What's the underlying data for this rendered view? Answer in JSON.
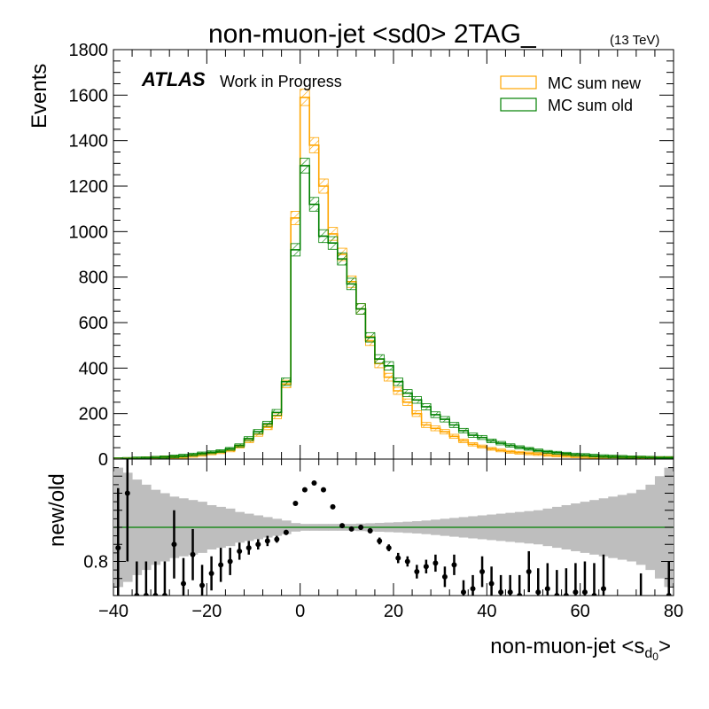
{
  "chart_data": [
    {
      "panel": "main",
      "type": "step-histogram",
      "title": "non-muon-jet <sd0> 2TAG_",
      "energy_label": "(13 TeV)",
      "atlas_label": "ATLAS",
      "atlas_sublabel": "Work in Progress",
      "ylabel": "Events",
      "ylim": [
        0,
        1800
      ],
      "xlim": [
        -40,
        80
      ],
      "y_ticks": [
        0,
        200,
        400,
        600,
        800,
        1000,
        1200,
        1400,
        1600,
        1800
      ],
      "y_tick_labels": [
        "0",
        "200",
        "400",
        "600",
        "800",
        "1000",
        "1200",
        "1400",
        "1600",
        "1800"
      ],
      "legend_position": "top-right",
      "bin_edges": [
        -40,
        -38,
        -36,
        -34,
        -32,
        -30,
        -28,
        -26,
        -24,
        -22,
        -20,
        -18,
        -16,
        -14,
        -12,
        -10,
        -8,
        -6,
        -4,
        -2,
        0,
        2,
        4,
        6,
        8,
        10,
        12,
        14,
        16,
        18,
        20,
        22,
        24,
        26,
        28,
        30,
        32,
        34,
        36,
        38,
        40,
        42,
        44,
        46,
        48,
        50,
        52,
        54,
        56,
        58,
        60,
        62,
        64,
        66,
        68,
        70,
        72,
        74,
        76,
        78,
        80
      ],
      "series": [
        {
          "name": "MC sum new",
          "color": "#FFA500",
          "values": [
            0,
            0,
            2,
            3,
            5,
            7,
            8,
            10,
            14,
            18,
            25,
            30,
            38,
            55,
            80,
            110,
            140,
            190,
            330,
            1060,
            1590,
            1380,
            1200,
            990,
            900,
            780,
            660,
            520,
            420,
            360,
            300,
            250,
            200,
            150,
            135,
            120,
            100,
            80,
            65,
            55,
            45,
            38,
            32,
            28,
            25,
            22,
            18,
            16,
            14,
            12,
            10,
            9,
            8,
            7,
            6,
            5,
            5,
            4,
            3,
            3
          ]
        },
        {
          "name": "MC sum old",
          "color": "#008000",
          "values": [
            0,
            1,
            3,
            4,
            6,
            8,
            12,
            15,
            20,
            25,
            30,
            35,
            45,
            60,
            90,
            120,
            155,
            205,
            340,
            920,
            1290,
            1120,
            980,
            950,
            880,
            770,
            660,
            535,
            440,
            410,
            340,
            290,
            260,
            230,
            195,
            175,
            150,
            125,
            105,
            95,
            80,
            70,
            60,
            52,
            45,
            38,
            32,
            28,
            24,
            20,
            18,
            15,
            13,
            11,
            10,
            8,
            7,
            6,
            5,
            5
          ]
        }
      ]
    },
    {
      "panel": "ratio",
      "type": "scatter",
      "xlabel": "non-muon-jet <s",
      "xlabel_sub": "d",
      "xlabel_subsub": "0",
      "xlabel_end": ">",
      "ylabel": "new/old",
      "ylim": [
        0.6,
        1.4
      ],
      "xlim": [
        -40,
        80
      ],
      "x_ticks": [
        -40,
        -20,
        0,
        20,
        40,
        60,
        80
      ],
      "x_tick_labels": [
        "−40",
        "−20",
        "0",
        "20",
        "40",
        "60",
        "80"
      ],
      "y_ticks": [
        0.8
      ],
      "y_tick_labels": [
        "0.8"
      ],
      "reference_line": 1.0,
      "reference_color": "#008000",
      "band_color": "#BEBEBE",
      "band_halfwidth": [
        0.35,
        0.32,
        0.28,
        0.25,
        0.22,
        0.2,
        0.18,
        0.17,
        0.16,
        0.15,
        0.13,
        0.12,
        0.11,
        0.09,
        0.08,
        0.07,
        0.06,
        0.05,
        0.04,
        0.025,
        0.02,
        0.02,
        0.02,
        0.02,
        0.02,
        0.02,
        0.022,
        0.024,
        0.026,
        0.028,
        0.03,
        0.033,
        0.036,
        0.04,
        0.045,
        0.05,
        0.055,
        0.06,
        0.065,
        0.07,
        0.075,
        0.08,
        0.085,
        0.09,
        0.095,
        0.1,
        0.11,
        0.12,
        0.13,
        0.14,
        0.15,
        0.16,
        0.17,
        0.18,
        0.19,
        0.2,
        0.22,
        0.25,
        0.3,
        0.35
      ],
      "points": [
        {
          "x": -39,
          "y": 0.88,
          "err": 0.35
        },
        {
          "x": -37,
          "y": 1.2,
          "err": 0.4
        },
        {
          "x": -35,
          "y": 0.6,
          "err": 0.2
        },
        {
          "x": -33,
          "y": 0.6,
          "err": 0.2
        },
        {
          "x": -31,
          "y": 0.6,
          "err": 0.2
        },
        {
          "x": -29,
          "y": 0.6,
          "err": 0.2
        },
        {
          "x": -27,
          "y": 0.9,
          "err": 0.2
        },
        {
          "x": -25,
          "y": 0.67,
          "err": 0.15
        },
        {
          "x": -23,
          "y": 0.84,
          "err": 0.15
        },
        {
          "x": -21,
          "y": 0.66,
          "err": 0.12
        },
        {
          "x": -19,
          "y": 0.73,
          "err": 0.1
        },
        {
          "x": -17,
          "y": 0.78,
          "err": 0.1
        },
        {
          "x": -15,
          "y": 0.8,
          "err": 0.08
        },
        {
          "x": -13,
          "y": 0.86,
          "err": 0.05
        },
        {
          "x": -11,
          "y": 0.88,
          "err": 0.04
        },
        {
          "x": -9,
          "y": 0.9,
          "err": 0.03
        },
        {
          "x": -7,
          "y": 0.92,
          "err": 0.03
        },
        {
          "x": -5,
          "y": 0.93,
          "err": 0.02
        },
        {
          "x": -3,
          "y": 0.97,
          "err": 0.015
        },
        {
          "x": -1,
          "y": 1.14,
          "err": 0.01
        },
        {
          "x": 1,
          "y": 1.22,
          "err": 0.01
        },
        {
          "x": 3,
          "y": 1.26,
          "err": 0.01
        },
        {
          "x": 5,
          "y": 1.22,
          "err": 0.01
        },
        {
          "x": 7,
          "y": 1.12,
          "err": 0.01
        },
        {
          "x": 9,
          "y": 1.01,
          "err": 0.012
        },
        {
          "x": 11,
          "y": 0.99,
          "err": 0.012
        },
        {
          "x": 13,
          "y": 1.0,
          "err": 0.015
        },
        {
          "x": 15,
          "y": 0.98,
          "err": 0.015
        },
        {
          "x": 17,
          "y": 0.92,
          "err": 0.02
        },
        {
          "x": 19,
          "y": 0.88,
          "err": 0.02
        },
        {
          "x": 21,
          "y": 0.82,
          "err": 0.03
        },
        {
          "x": 23,
          "y": 0.8,
          "err": 0.03
        },
        {
          "x": 25,
          "y": 0.74,
          "err": 0.04
        },
        {
          "x": 27,
          "y": 0.77,
          "err": 0.04
        },
        {
          "x": 29,
          "y": 0.79,
          "err": 0.05
        },
        {
          "x": 31,
          "y": 0.71,
          "err": 0.06
        },
        {
          "x": 33,
          "y": 0.78,
          "err": 0.06
        },
        {
          "x": 35,
          "y": 0.62,
          "err": 0.07
        },
        {
          "x": 37,
          "y": 0.64,
          "err": 0.08
        },
        {
          "x": 39,
          "y": 0.74,
          "err": 0.09
        },
        {
          "x": 41,
          "y": 0.67,
          "err": 0.1
        },
        {
          "x": 43,
          "y": 0.62,
          "err": 0.1
        },
        {
          "x": 45,
          "y": 0.62,
          "err": 0.1
        },
        {
          "x": 47,
          "y": 0.6,
          "err": 0.12
        },
        {
          "x": 49,
          "y": 0.74,
          "err": 0.12
        },
        {
          "x": 51,
          "y": 0.62,
          "err": 0.14
        },
        {
          "x": 53,
          "y": 0.64,
          "err": 0.15
        },
        {
          "x": 55,
          "y": 0.6,
          "err": 0.15
        },
        {
          "x": 57,
          "y": 0.6,
          "err": 0.16
        },
        {
          "x": 59,
          "y": 0.62,
          "err": 0.17
        },
        {
          "x": 61,
          "y": 0.62,
          "err": 0.18
        },
        {
          "x": 63,
          "y": 0.6,
          "err": 0.19
        },
        {
          "x": 65,
          "y": 0.64,
          "err": 0.2
        },
        {
          "x": 73,
          "y": 0.58,
          "err": 0.15
        },
        {
          "x": 79,
          "y": 0.6,
          "err": 0.2
        }
      ]
    }
  ]
}
